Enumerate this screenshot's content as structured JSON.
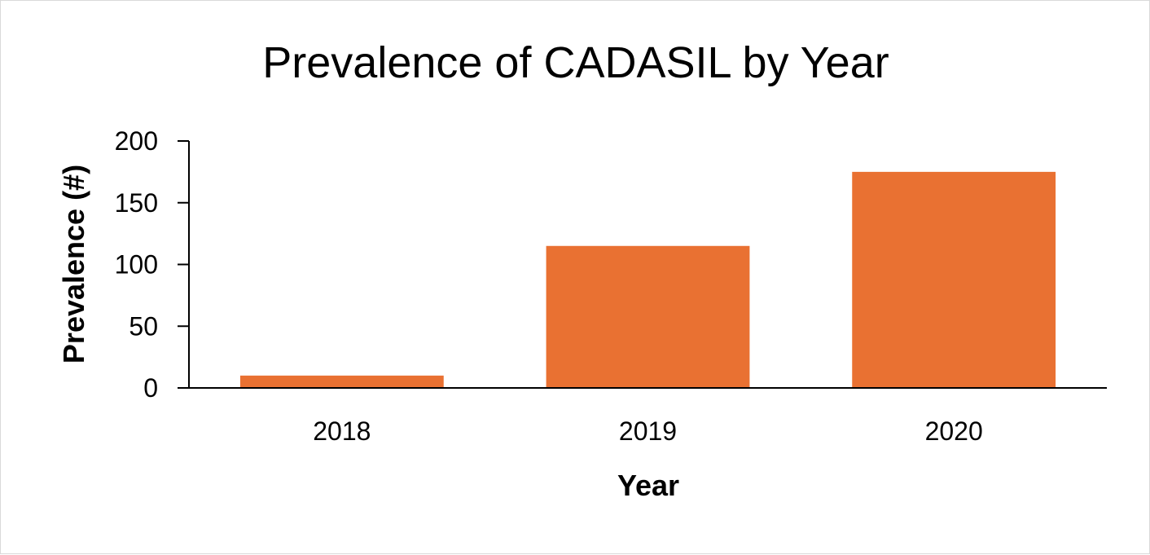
{
  "chart_data": {
    "type": "bar",
    "title": "Prevalence of CADASIL by Year",
    "xlabel": "Year",
    "ylabel": "Prevalence (#)",
    "categories": [
      "2018",
      "2019",
      "2020"
    ],
    "series": [
      {
        "values": [
          10,
          115,
          175
        ]
      }
    ],
    "ylim": [
      0,
      200
    ],
    "yticks": [
      "0",
      "50",
      "100",
      "150",
      "200"
    ],
    "grid": false,
    "legend": "none",
    "bar_color": "#E97132",
    "axis_color": "#000000"
  }
}
